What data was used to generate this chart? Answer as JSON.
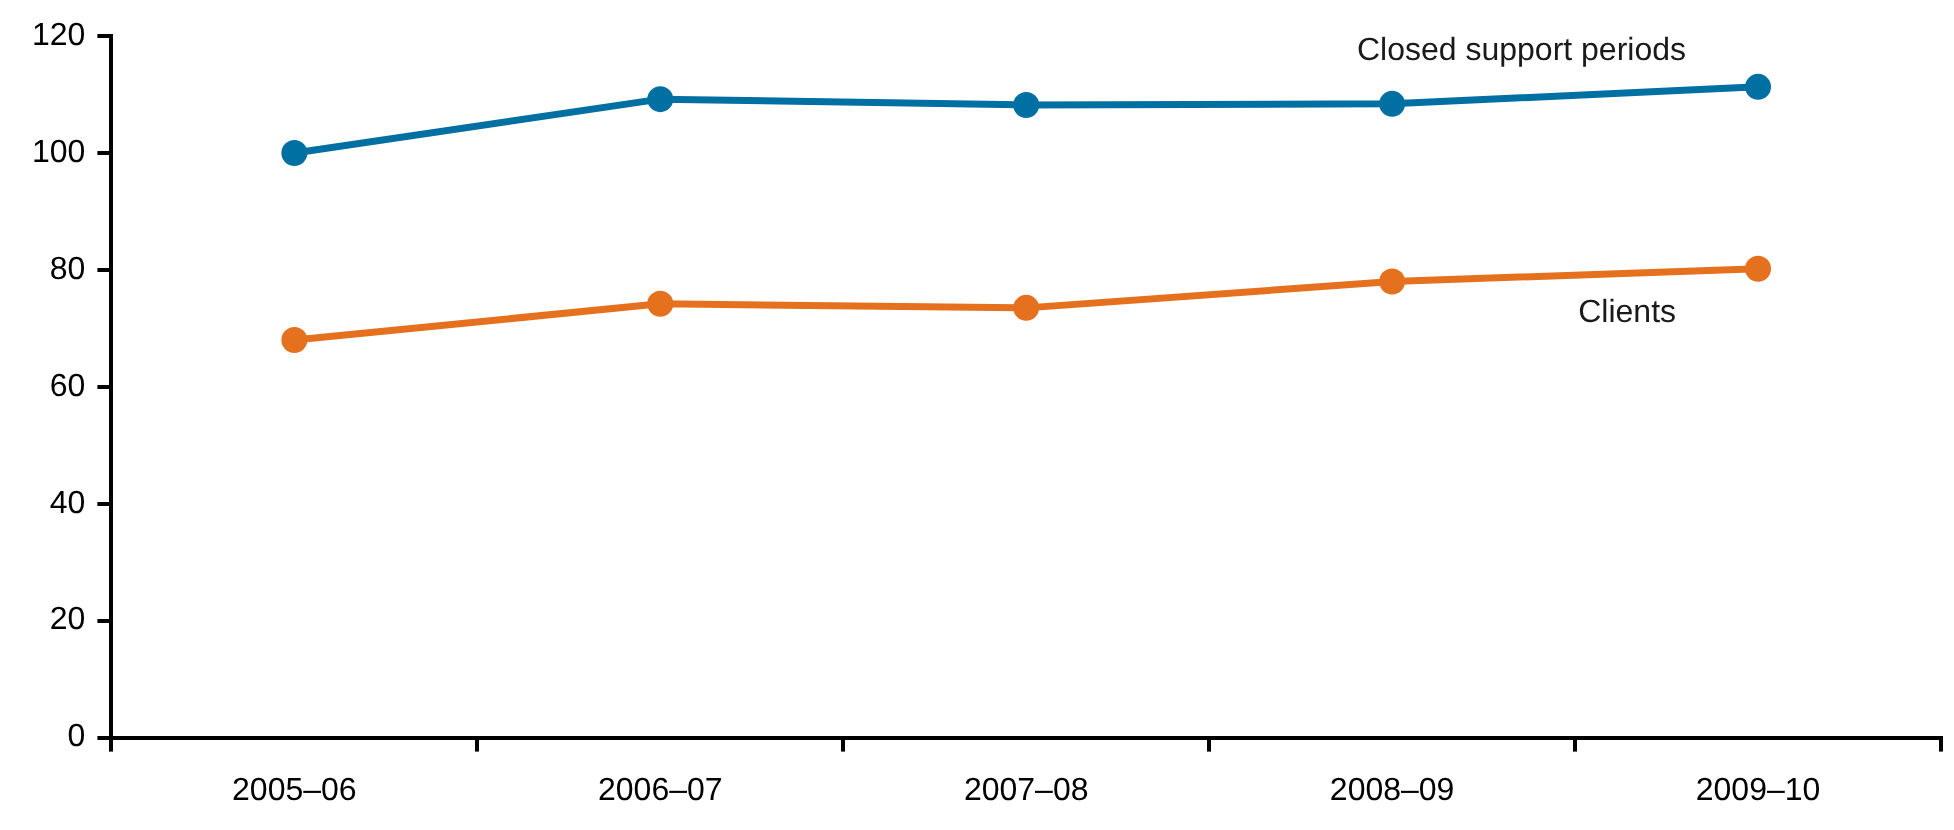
{
  "chart_data": {
    "type": "line",
    "categories": [
      "2005–06",
      "2006–07",
      "2007–08",
      "2008–09",
      "2009–10"
    ],
    "series": [
      {
        "name": "Closed support periods",
        "color": "#0070a3",
        "values": [
          100,
          109.2,
          108.2,
          108.4,
          111.3
        ]
      },
      {
        "name": "Clients",
        "color": "#e5711f",
        "values": [
          68,
          74.2,
          73.5,
          78,
          80.2
        ]
      }
    ],
    "ylim": [
      0,
      120
    ],
    "yticks": [
      0,
      20,
      40,
      60,
      80,
      100,
      120
    ],
    "marker": "circle",
    "line_style": "solid"
  }
}
